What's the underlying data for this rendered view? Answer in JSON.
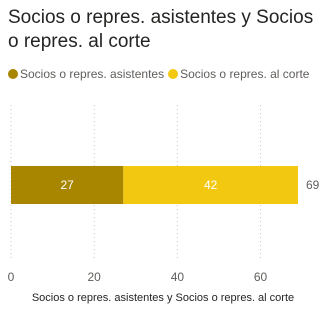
{
  "title": "Socios o repres. asistentes y Socios o repres. al corte",
  "legend": [
    {
      "name": "Socios o repres. asistentes",
      "color": "#a88600"
    },
    {
      "name": "Socios o repres. al corte",
      "color": "#f2c811"
    }
  ],
  "total_label": "69",
  "chart_data": {
    "type": "bar",
    "orientation": "horizontal",
    "stacked": true,
    "categories": [
      ""
    ],
    "series": [
      {
        "name": "Socios o repres. asistentes",
        "values": [
          27
        ],
        "color": "#a88600"
      },
      {
        "name": "Socios o repres. al corte",
        "values": [
          42
        ],
        "color": "#f2c811"
      }
    ],
    "total": 69,
    "xlabel": "Socios o repres. asistentes y Socios o repres. al corte",
    "ylabel": "",
    "xlim": [
      0,
      69
    ],
    "xticks": [
      "0",
      "20",
      "40",
      "60"
    ],
    "tick_values": [
      0,
      20,
      40,
      60
    ],
    "legend_position": "top-left",
    "grid": true
  }
}
